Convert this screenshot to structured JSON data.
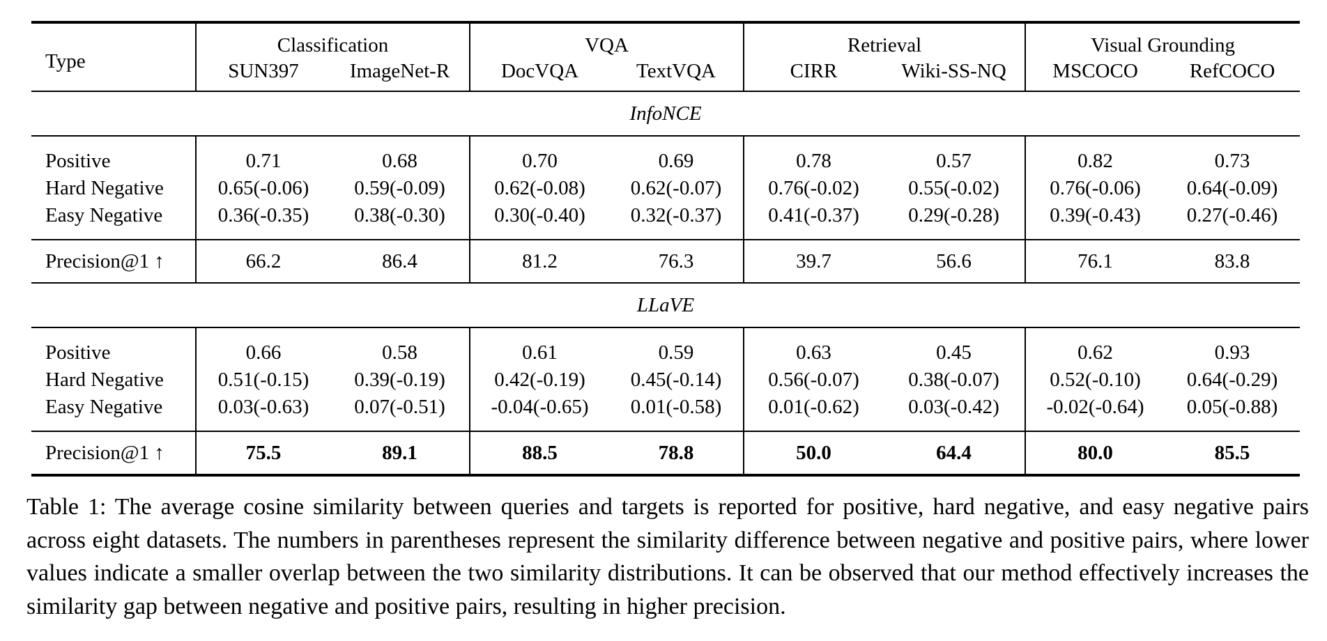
{
  "table": {
    "type_header": "Type",
    "groups": [
      {
        "name": "Classification",
        "datasets": [
          "SUN397",
          "ImageNet-R"
        ]
      },
      {
        "name": "VQA",
        "datasets": [
          "DocVQA",
          "TextVQA"
        ]
      },
      {
        "name": "Retrieval",
        "datasets": [
          "CIRR",
          "Wiki-SS-NQ"
        ]
      },
      {
        "name": "Visual Grounding",
        "datasets": [
          "MSCOCO",
          "RefCOCO"
        ]
      }
    ],
    "sections": [
      {
        "title": "InfoNCE",
        "rows": [
          {
            "label": "Positive",
            "values": [
              "0.71",
              "0.68",
              "0.70",
              "0.69",
              "0.78",
              "0.57",
              "0.82",
              "0.73"
            ]
          },
          {
            "label": "Hard Negative",
            "values": [
              "0.65(-0.06)",
              "0.59(-0.09)",
              "0.62(-0.08)",
              "0.62(-0.07)",
              "0.76(-0.02)",
              "0.55(-0.02)",
              "0.76(-0.06)",
              "0.64(-0.09)"
            ]
          },
          {
            "label": "Easy Negative",
            "values": [
              "0.36(-0.35)",
              "0.38(-0.30)",
              "0.30(-0.40)",
              "0.32(-0.37)",
              "0.41(-0.37)",
              "0.29(-0.28)",
              "0.39(-0.43)",
              "0.27(-0.46)"
            ]
          }
        ],
        "precision": {
          "label": "Precision@1 ↑",
          "values": [
            "66.2",
            "86.4",
            "81.2",
            "76.3",
            "39.7",
            "56.6",
            "76.1",
            "83.8"
          ]
        }
      },
      {
        "title": "LLaVE",
        "rows": [
          {
            "label": "Positive",
            "values": [
              "0.66",
              "0.58",
              "0.61",
              "0.59",
              "0.63",
              "0.45",
              "0.62",
              "0.93"
            ]
          },
          {
            "label": "Hard Negative",
            "values": [
              "0.51(-0.15)",
              "0.39(-0.19)",
              "0.42(-0.19)",
              "0.45(-0.14)",
              "0.56(-0.07)",
              "0.38(-0.07)",
              "0.52(-0.10)",
              "0.64(-0.29)"
            ]
          },
          {
            "label": "Easy Negative",
            "values": [
              "0.03(-0.63)",
              "0.07(-0.51)",
              "-0.04(-0.65)",
              "0.01(-0.58)",
              "0.01(-0.62)",
              "0.03(-0.42)",
              "-0.02(-0.64)",
              "0.05(-0.88)"
            ]
          }
        ],
        "precision": {
          "label": "Precision@1 ↑",
          "values": [
            "75.5",
            "89.1",
            "88.5",
            "78.8",
            "50.0",
            "64.4",
            "80.0",
            "85.5"
          ]
        }
      }
    ]
  },
  "caption": "Table 1: The average cosine similarity between queries and targets is reported for positive, hard negative, and easy negative pairs across eight datasets. The numbers in parentheses represent the similarity difference between negative and positive pairs, where lower values indicate a smaller overlap between the two similarity distributions. It can be observed that our method effectively increases the similarity gap between negative and positive pairs, resulting in higher precision."
}
